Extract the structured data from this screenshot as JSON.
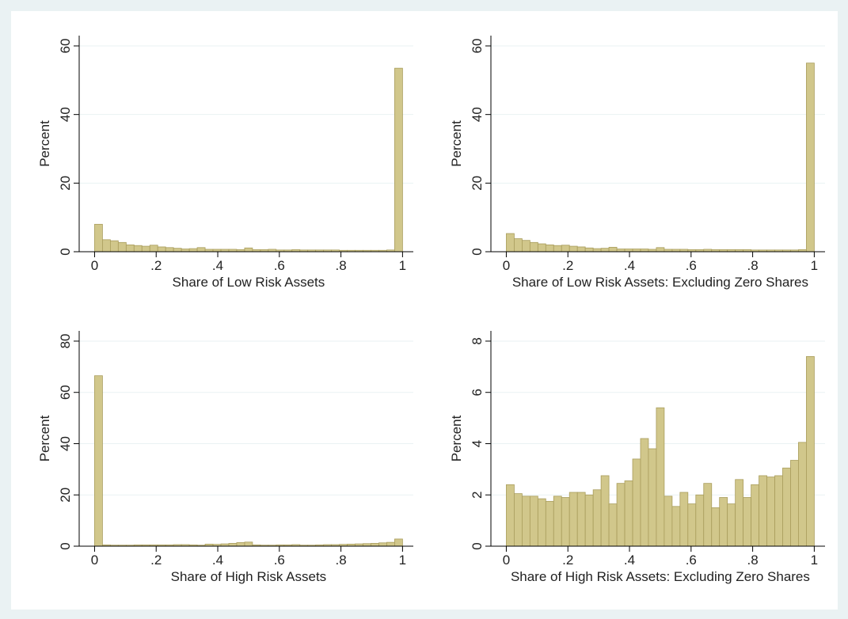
{
  "chart_data": [
    {
      "type": "histogram",
      "x_label": "Share of Low Risk Assets",
      "y_label": "Percent",
      "bins": [
        0,
        0.0256,
        0.0513,
        0.0769,
        0.1026,
        0.1282,
        0.1538,
        0.1795,
        0.2051,
        0.2308,
        0.2564,
        0.2821,
        0.3077,
        0.3333,
        0.359,
        0.3846,
        0.4103,
        0.4359,
        0.4615,
        0.4872,
        0.5128,
        0.5385,
        0.5641,
        0.5897,
        0.6154,
        0.641,
        0.6667,
        0.6923,
        0.7179,
        0.7436,
        0.7692,
        0.7949,
        0.8205,
        0.8462,
        0.8718,
        0.8974,
        0.9231,
        0.9487,
        0.9744,
        1
      ],
      "values": [
        8,
        3.5,
        3.2,
        2.7,
        2,
        1.8,
        1.6,
        1.9,
        1.4,
        1.2,
        1,
        0.8,
        0.9,
        1.2,
        0.7,
        0.7,
        0.7,
        0.7,
        0.6,
        1.1,
        0.6,
        0.6,
        0.7,
        0.5,
        0.5,
        0.6,
        0.5,
        0.5,
        0.5,
        0.5,
        0.5,
        0.4,
        0.4,
        0.4,
        0.4,
        0.4,
        0.4,
        0.5,
        53.5
      ],
      "color": "#d1c78b",
      "xlim": [
        -0.05,
        1.035
      ],
      "ylim": [
        0,
        63
      ],
      "xticks": [
        0,
        {
          "value": 0.2,
          "label": ".2"
        },
        {
          "value": 0.4,
          "label": ".4"
        },
        {
          "value": 0.6,
          "label": ".6"
        },
        {
          "value": 0.8,
          "label": ".8"
        },
        1
      ],
      "yticks": [
        0,
        20,
        40,
        60
      ],
      "grid": true
    },
    {
      "type": "histogram",
      "x_label": "Share of Low Risk Assets: Excluding Zero Shares",
      "y_label": "Percent",
      "bins": [
        0,
        0.0256,
        0.0513,
        0.0769,
        0.1026,
        0.1282,
        0.1538,
        0.1795,
        0.2051,
        0.2308,
        0.2564,
        0.2821,
        0.3077,
        0.3333,
        0.359,
        0.3846,
        0.4103,
        0.4359,
        0.4615,
        0.4872,
        0.5128,
        0.5385,
        0.5641,
        0.5897,
        0.6154,
        0.641,
        0.6667,
        0.6923,
        0.7179,
        0.7436,
        0.7692,
        0.7949,
        0.8205,
        0.8462,
        0.8718,
        0.8974,
        0.9231,
        0.9487,
        0.9744,
        1
      ],
      "values": [
        5.3,
        3.8,
        3.3,
        2.7,
        2.3,
        2,
        1.8,
        1.9,
        1.6,
        1.4,
        1.1,
        0.9,
        1,
        1.3,
        0.8,
        0.8,
        0.8,
        0.8,
        0.7,
        1.2,
        0.7,
        0.7,
        0.7,
        0.6,
        0.6,
        0.7,
        0.6,
        0.6,
        0.6,
        0.6,
        0.6,
        0.5,
        0.5,
        0.5,
        0.5,
        0.5,
        0.5,
        0.6,
        55
      ],
      "color": "#d1c78b",
      "xlim": [
        -0.05,
        1.035
      ],
      "ylim": [
        0,
        63
      ],
      "xticks": [
        0,
        {
          "value": 0.2,
          "label": ".2"
        },
        {
          "value": 0.4,
          "label": ".4"
        },
        {
          "value": 0.6,
          "label": ".6"
        },
        {
          "value": 0.8,
          "label": ".8"
        },
        1
      ],
      "yticks": [
        0,
        20,
        40,
        60
      ],
      "grid": true
    },
    {
      "type": "histogram",
      "x_label": "Share of High Risk Assets",
      "y_label": "Percent",
      "bins": [
        0,
        0.0256,
        0.0513,
        0.0769,
        0.1026,
        0.1282,
        0.1538,
        0.1795,
        0.2051,
        0.2308,
        0.2564,
        0.2821,
        0.3077,
        0.3333,
        0.359,
        0.3846,
        0.4103,
        0.4359,
        0.4615,
        0.4872,
        0.5128,
        0.5385,
        0.5641,
        0.5897,
        0.6154,
        0.641,
        0.6667,
        0.6923,
        0.7179,
        0.7436,
        0.7692,
        0.7949,
        0.8205,
        0.8462,
        0.8718,
        0.8974,
        0.9231,
        0.9487,
        0.9744,
        1
      ],
      "values": [
        66.5,
        0.5,
        0.4,
        0.4,
        0.4,
        0.5,
        0.5,
        0.5,
        0.5,
        0.5,
        0.6,
        0.6,
        0.5,
        0.4,
        0.8,
        0.7,
        0.9,
        1.1,
        1.4,
        1.6,
        0.5,
        0.4,
        0.4,
        0.5,
        0.5,
        0.6,
        0.4,
        0.4,
        0.5,
        0.6,
        0.6,
        0.7,
        0.8,
        0.9,
        1,
        1.1,
        1.3,
        1.5,
        2.8
      ],
      "color": "#d1c78b",
      "xlim": [
        -0.05,
        1.035
      ],
      "ylim": [
        0,
        84
      ],
      "xticks": [
        0,
        {
          "value": 0.2,
          "label": ".2"
        },
        {
          "value": 0.4,
          "label": ".4"
        },
        {
          "value": 0.6,
          "label": ".6"
        },
        {
          "value": 0.8,
          "label": ".8"
        },
        1
      ],
      "yticks": [
        0,
        20,
        40,
        60,
        80
      ],
      "grid": true
    },
    {
      "type": "histogram",
      "x_label": "Share of High Risk Assets: Excluding Zero Shares",
      "y_label": "Percent",
      "bins": [
        0,
        0.0256,
        0.0513,
        0.0769,
        0.1026,
        0.1282,
        0.1538,
        0.1795,
        0.2051,
        0.2308,
        0.2564,
        0.2821,
        0.3077,
        0.3333,
        0.359,
        0.3846,
        0.4103,
        0.4359,
        0.4615,
        0.4872,
        0.5128,
        0.5385,
        0.5641,
        0.5897,
        0.6154,
        0.641,
        0.6667,
        0.6923,
        0.7179,
        0.7436,
        0.7692,
        0.7949,
        0.8205,
        0.8462,
        0.8718,
        0.8974,
        0.9231,
        0.9487,
        0.9744,
        1
      ],
      "values": [
        2.4,
        2.05,
        1.95,
        1.95,
        1.85,
        1.75,
        1.95,
        1.9,
        2.1,
        2.1,
        2,
        2.2,
        2.75,
        1.65,
        2.45,
        2.55,
        3.4,
        4.2,
        3.8,
        5.4,
        1.95,
        1.55,
        2.1,
        1.65,
        2,
        2.45,
        1.5,
        1.9,
        1.65,
        2.6,
        1.9,
        2.4,
        2.75,
        2.7,
        2.75,
        3.05,
        3.35,
        4.05,
        7.4
      ],
      "color": "#d1c78b",
      "xlim": [
        -0.05,
        1.035
      ],
      "ylim": [
        0,
        8.4
      ],
      "xticks": [
        0,
        {
          "value": 0.2,
          "label": ".2"
        },
        {
          "value": 0.4,
          "label": ".4"
        },
        {
          "value": 0.6,
          "label": ".6"
        },
        {
          "value": 0.8,
          "label": ".8"
        },
        1
      ],
      "yticks": [
        0,
        2,
        4,
        6,
        8
      ],
      "grid": true
    }
  ]
}
